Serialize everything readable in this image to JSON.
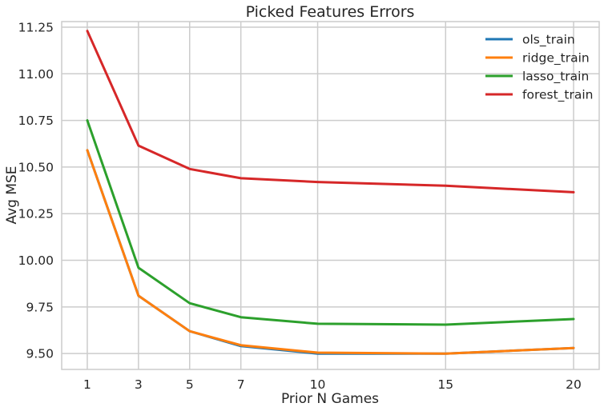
{
  "chart_data": {
    "type": "line",
    "title": "Picked Features Errors",
    "xlabel": "Prior N Games",
    "ylabel": "Avg MSE",
    "x": [
      1,
      3,
      5,
      7,
      10,
      15,
      20
    ],
    "xticks": [
      "1",
      "3",
      "5",
      "7",
      "10",
      "15",
      "20"
    ],
    "yticks": [
      "9.50",
      "9.75",
      "10.00",
      "10.25",
      "10.50",
      "10.75",
      "11.00",
      "11.25"
    ],
    "xlim": [
      0,
      21
    ],
    "ylim": [
      9.415,
      11.28
    ],
    "grid": true,
    "legend_position": "top-right",
    "series": [
      {
        "name": "ols_train",
        "color": "#1f77b4",
        "values": [
          10.59,
          9.81,
          9.62,
          9.54,
          9.5,
          9.5,
          9.53
        ]
      },
      {
        "name": "ridge_train",
        "color": "#ff7f0e",
        "values": [
          10.59,
          9.81,
          9.62,
          9.545,
          9.505,
          9.5,
          9.53
        ]
      },
      {
        "name": "lasso_train",
        "color": "#2ca02c",
        "values": [
          10.75,
          9.96,
          9.77,
          9.695,
          9.66,
          9.655,
          9.685
        ]
      },
      {
        "name": "forest_train",
        "color": "#d62728",
        "values": [
          11.23,
          10.615,
          10.49,
          10.44,
          10.42,
          10.4,
          10.365
        ]
      }
    ]
  }
}
